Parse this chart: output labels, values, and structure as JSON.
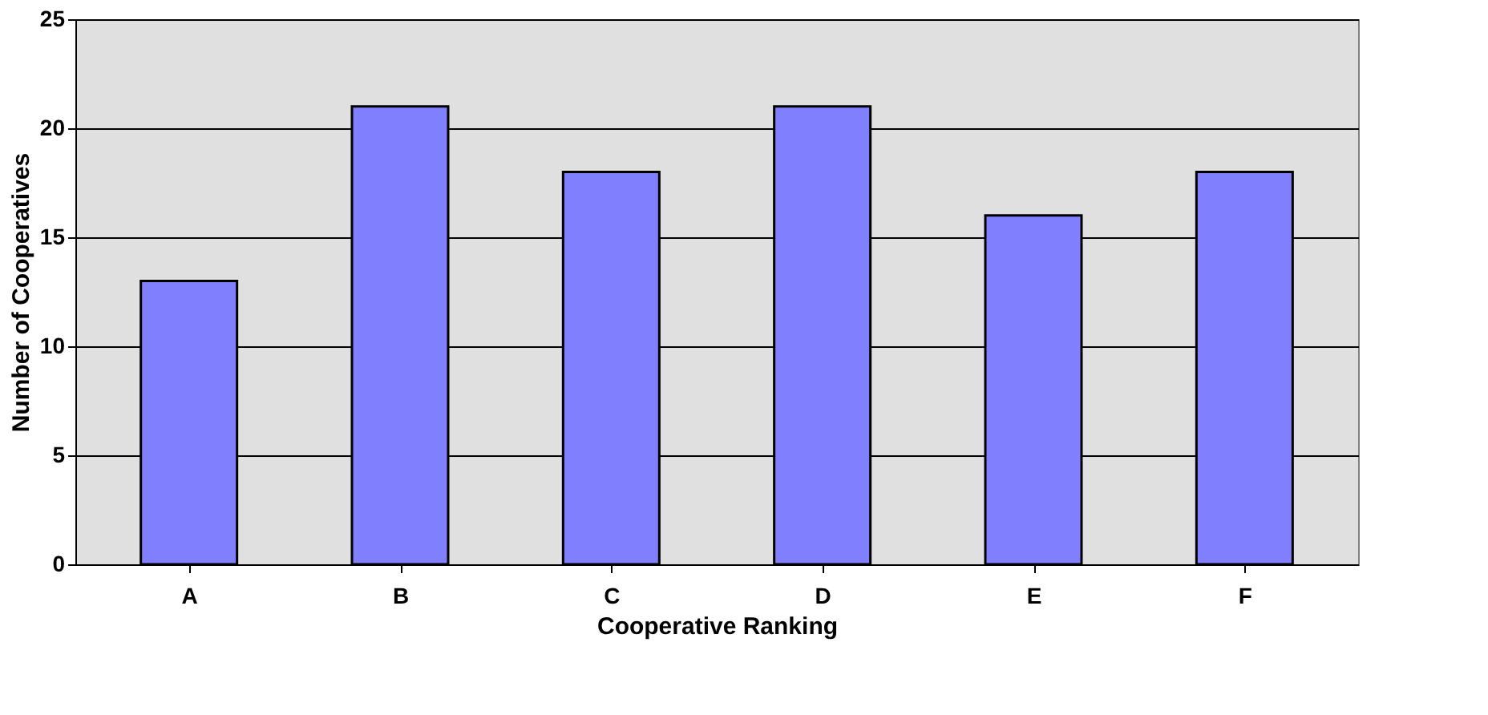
{
  "chart_data": {
    "type": "bar",
    "xlabel": "Cooperative Ranking",
    "ylabel": "Number of Cooperatives",
    "categories": [
      "A",
      "B",
      "C",
      "D",
      "E",
      "F"
    ],
    "values": [
      13,
      21,
      18,
      21,
      16,
      18
    ],
    "color": "#8080ff",
    "ylim": [
      0,
      25
    ],
    "yticks": [
      0,
      5,
      10,
      15,
      20,
      25
    ],
    "grid": "y"
  }
}
